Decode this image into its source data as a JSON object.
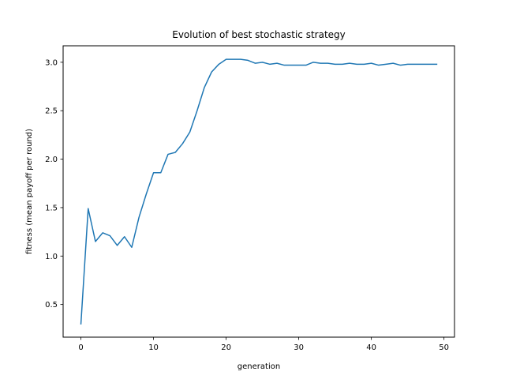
{
  "chart_data": {
    "type": "line",
    "title": "Evolution of best stochastic strategy",
    "xlabel": "generation",
    "ylabel": "fitness (mean payoff per round)",
    "xlim": [
      -2.45,
      51.45
    ],
    "ylim": [
      0.163,
      3.17
    ],
    "xticks": [
      0,
      10,
      20,
      30,
      40,
      50
    ],
    "yticks": [
      0.5,
      1.0,
      1.5,
      2.0,
      2.5,
      3.0
    ],
    "xtick_labels": [
      "0",
      "10",
      "20",
      "30",
      "40",
      "50"
    ],
    "ytick_labels": [
      "0.5",
      "1.0",
      "1.5",
      "2.0",
      "2.5",
      "3.0"
    ],
    "grid": false,
    "legend": "none",
    "line_color": "#1f77b4",
    "series": [
      {
        "x": [
          0,
          1,
          2,
          3,
          4,
          5,
          6,
          7,
          8,
          9,
          10,
          11,
          12,
          13,
          14,
          15,
          16,
          17,
          18,
          19,
          20,
          21,
          22,
          23,
          24,
          25,
          26,
          27,
          28,
          29,
          30,
          31,
          32,
          33,
          34,
          35,
          36,
          37,
          38,
          39,
          40,
          41,
          42,
          43,
          44,
          45,
          46,
          47,
          48,
          49
        ],
        "values": [
          0.3,
          1.49,
          1.15,
          1.24,
          1.21,
          1.11,
          1.2,
          1.09,
          1.4,
          1.64,
          1.86,
          1.86,
          2.05,
          2.07,
          2.16,
          2.28,
          2.5,
          2.74,
          2.9,
          2.98,
          3.03,
          3.03,
          3.03,
          3.02,
          2.99,
          3.0,
          2.98,
          2.99,
          2.97,
          2.97,
          2.97,
          2.97,
          3.0,
          2.99,
          2.99,
          2.98,
          2.98,
          2.99,
          2.98,
          2.98,
          2.99,
          2.97,
          2.98,
          2.99,
          2.97,
          2.98,
          2.98,
          2.98,
          2.98,
          2.98
        ]
      }
    ]
  }
}
